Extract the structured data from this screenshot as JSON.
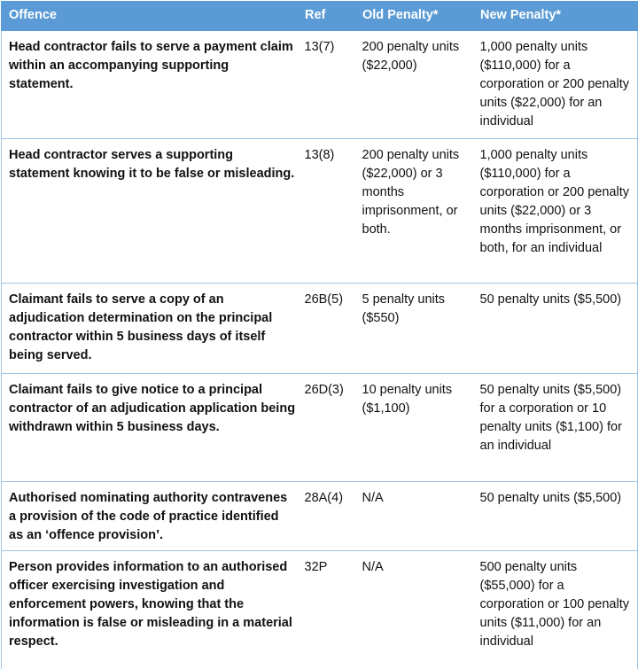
{
  "table": {
    "header": [
      "Offence",
      "Ref",
      "Old Penalty*",
      "New Penalty*"
    ],
    "rows": [
      [
        "Head contractor fails to serve a payment claim within an accompanying supporting statement.",
        "13(7)",
        "200 penalty units ($22,000)",
        "1,000 penalty units ($110,000) for a corporation or 200 penalty units ($22,000) for an individual"
      ],
      [
        "Head contractor serves a supporting statement knowing it to be false or misleading.",
        "13(8)",
        "200 penalty units ($22,000) or 3 months imprisonment, or both.",
        "1,000 penalty units ($110,000) for a corporation or 200 penalty units ($22,000) or 3 months imprisonment, or both, for an individual"
      ],
      [
        "Claimant fails to serve a copy of an adjudication determination on the principal contractor within 5 business days of itself being served.",
        "26B(5)",
        "5 penalty units ($550)",
        "50 penalty units ($5,500)"
      ],
      [
        "Claimant fails to give notice to a principal contractor of an adjudication application being withdrawn within 5 business days.",
        "26D(3)",
        "10 penalty units ($1,100)",
        "50 penalty units ($5,500) for a corporation or 10 penalty units ($1,100) for an individual"
      ],
      [
        "Authorised nominating authority contravenes a provision of the code of practice identified as an ‘offence provision’.",
        "28A(4)",
        "N/A",
        "50 penalty units ($5,500)"
      ],
      [
        "Person provides information to an authorised officer exercising investigation and enforcement powers, knowing that the information is false or misleading in a material respect.",
        "32P",
        "N/A",
        "500 penalty units ($55,000) for a corporation or 100 penalty units ($11,000) for an individual"
      ]
    ]
  }
}
